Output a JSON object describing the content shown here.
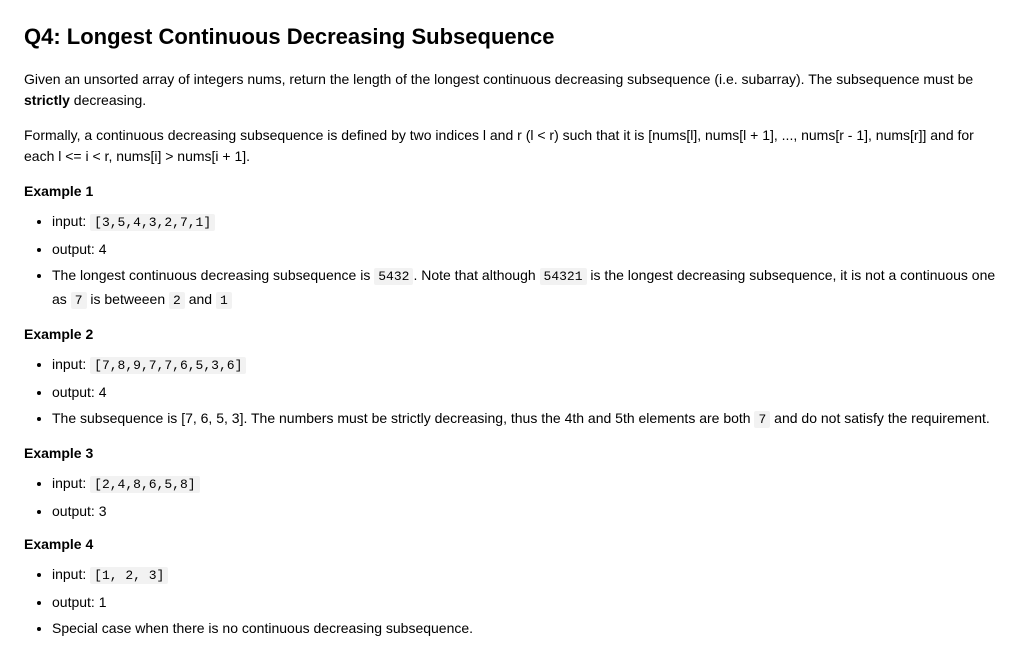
{
  "title": "Q4: Longest Continuous Decreasing Subsequence",
  "intro": {
    "pre": "Given an unsorted array of integers nums, return the length of the longest continuous decreasing subsequence (i.e. subarray). The subsequence must be ",
    "strong": "strictly",
    "post": " decreasing."
  },
  "formal": "Formally, a continuous decreasing subsequence is defined by two indices l and r (l < r) such that it is [nums[l], nums[l + 1], ..., nums[r - 1], nums[r]] and for each l <= i < r, nums[i] > nums[i + 1].",
  "ex1": {
    "label": "Example 1",
    "input_prefix": "input: ",
    "input_code": "[3,5,4,3,2,7,1]",
    "output": "output: 4",
    "exp_a": "The longest continuous decreasing subsequence is ",
    "exp_code1": "5432",
    "exp_b": ". Note that although ",
    "exp_code2": "54321",
    "exp_c": " is the longest decreasing subsequence, it is not a continuous one as ",
    "exp_code3": "7",
    "exp_d": " is betweeen ",
    "exp_code4": "2",
    "exp_e": " and ",
    "exp_code5": "1"
  },
  "ex2": {
    "label": "Example 2",
    "input_prefix": "input: ",
    "input_code": "[7,8,9,7,7,6,5,3,6]",
    "output": "output: 4",
    "exp_a": "The subsequence is [7, 6, 5, 3]. The numbers must be strictly decreasing, thus the 4th and 5th elements are both ",
    "exp_code1": "7",
    "exp_b": " and do not satisfy the requirement."
  },
  "ex3": {
    "label": "Example 3",
    "input_prefix": "input: ",
    "input_code": "[2,4,8,6,5,8]",
    "output": "output: 3"
  },
  "ex4": {
    "label": "Example 4",
    "input_prefix": "input: ",
    "input_code": "[1, 2, 3]",
    "output": "output: 1",
    "exp": "Special case when there is no continuous decreasing subsequence."
  }
}
